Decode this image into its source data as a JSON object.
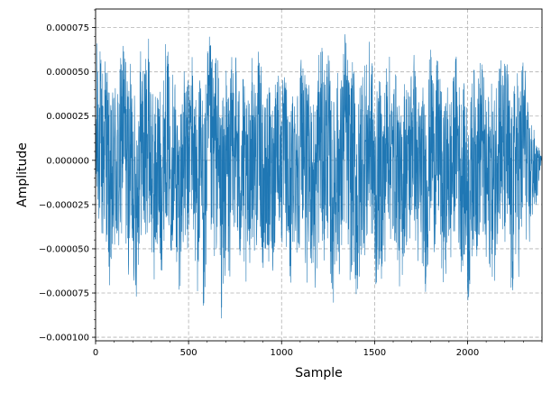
{
  "chart_data": {
    "type": "line",
    "title": "",
    "xlabel": "Sample",
    "ylabel": "Amplitude",
    "xlim": [
      0,
      2400
    ],
    "ylim": [
      -0.000102,
      8.55e-05
    ],
    "xticks": [
      0,
      500,
      1000,
      1500,
      2000
    ],
    "xtick_labels": [
      "0",
      "500",
      "1000",
      "1500",
      "2000"
    ],
    "yticks": [
      -0.0001,
      -7.5e-05,
      -5e-05,
      -2.5e-05,
      0,
      2.5e-05,
      5e-05,
      7.5e-05
    ],
    "ytick_labels": [
      "−0.000100",
      "−0.000075",
      "−0.000050",
      "−0.000025",
      "0.000000",
      "0.000025",
      "0.000050",
      "0.000075"
    ],
    "grid": true,
    "legend": "none",
    "series": [
      {
        "color": "#1f77b4",
        "n_samples": 2400,
        "x_step": 1,
        "note_values": "dense noise-like waveform; envelope sampled every 100 samples (min, max)",
        "envelope_x": [
          0,
          100,
          200,
          300,
          400,
          500,
          600,
          700,
          800,
          900,
          1000,
          1100,
          1200,
          1300,
          1400,
          1500,
          1600,
          1700,
          1800,
          1900,
          2000,
          2100,
          2200,
          2300,
          2400
        ],
        "envelope_max": [
          7.5e-05,
          6.8e-05,
          7.6e-05,
          7e-05,
          6.6e-05,
          6e-05,
          7.2e-05,
          7e-05,
          6.8e-05,
          6.2e-05,
          5.8e-05,
          6.4e-05,
          7.2e-05,
          7e-05,
          7.4e-05,
          6.8e-05,
          6e-05,
          6.2e-05,
          6.6e-05,
          6e-05,
          5.6e-05,
          6.4e-05,
          7.2e-05,
          6.2e-05,
          0.0
        ],
        "envelope_min": [
          -7e-05,
          -8e-05,
          -7.8e-05,
          -7.2e-05,
          -7e-05,
          -7.6e-05,
          -9.3e-05,
          -8.8e-05,
          -7.8e-05,
          -7.6e-05,
          -7e-05,
          -7.4e-05,
          -8.2e-05,
          -8e-05,
          -8.6e-05,
          -7.8e-05,
          -7.4e-05,
          -7.2e-05,
          -7.6e-05,
          -7.2e-05,
          -8.2e-05,
          -7.6e-05,
          -7.8e-05,
          -9e-05,
          0.0
        ]
      }
    ]
  }
}
